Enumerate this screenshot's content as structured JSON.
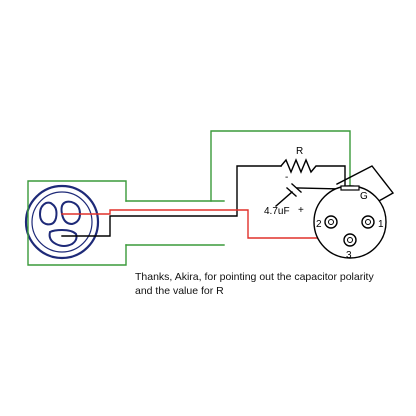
{
  "colors": {
    "green": "#3a9a3a",
    "red": "#e0302a",
    "black": "#000000",
    "navy": "#1e2a78"
  },
  "labels": {
    "resistor": "R",
    "cap_minus": "-",
    "cap_plus": "+",
    "cap_value": "4.7uF",
    "pin_g": "G",
    "pin_1": "1",
    "pin_2": "2",
    "pin_3": "3"
  },
  "caption": {
    "line1": "Thanks, Akira, for pointing out the capacitor polarity",
    "line2": "and the value for R"
  }
}
